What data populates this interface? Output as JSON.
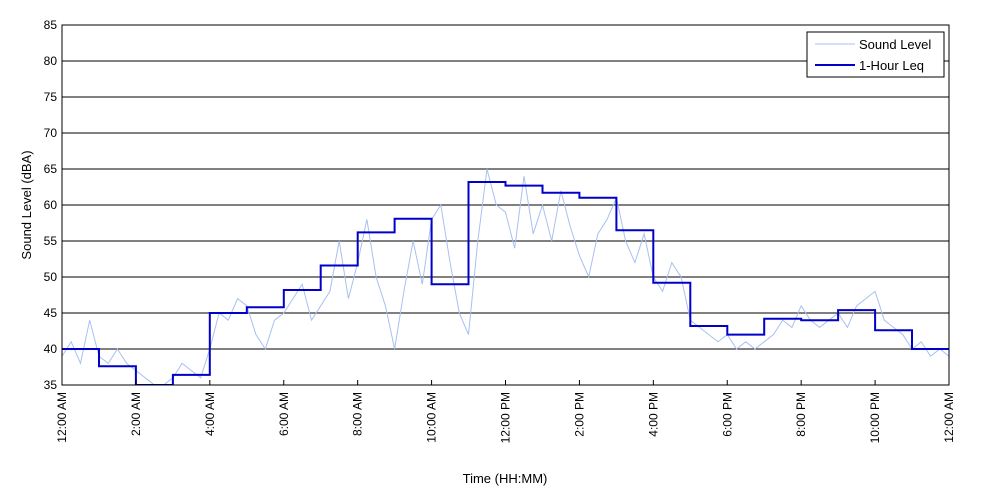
{
  "chart_data": {
    "type": "line",
    "xlabel": "Time (HH:MM)",
    "ylabel": "Sound Level (dBA)",
    "ylim": [
      35,
      85
    ],
    "yticks": [
      35,
      40,
      45,
      50,
      55,
      60,
      65,
      70,
      75,
      80,
      85
    ],
    "xlim": [
      0,
      24
    ],
    "xticks": [
      {
        "hour": 0,
        "label": "12:00 AM"
      },
      {
        "hour": 2,
        "label": "2:00 AM"
      },
      {
        "hour": 4,
        "label": "4:00 AM"
      },
      {
        "hour": 6,
        "label": "6:00 AM"
      },
      {
        "hour": 8,
        "label": "8:00 AM"
      },
      {
        "hour": 10,
        "label": "10:00 AM"
      },
      {
        "hour": 12,
        "label": "12:00 PM"
      },
      {
        "hour": 14,
        "label": "2:00 PM"
      },
      {
        "hour": 16,
        "label": "4:00 PM"
      },
      {
        "hour": 18,
        "label": "6:00 PM"
      },
      {
        "hour": 20,
        "label": "8:00 PM"
      },
      {
        "hour": 22,
        "label": "10:00 PM"
      },
      {
        "hour": 24,
        "label": "12:00 AM"
      }
    ],
    "grid": "horizontal",
    "legend_position": "top-right",
    "series": [
      {
        "name": "Sound Level",
        "color": "#a8c0f0",
        "x": [
          0,
          0.25,
          0.5,
          0.75,
          1,
          1.25,
          1.5,
          1.75,
          2,
          2.25,
          2.5,
          2.75,
          3,
          3.25,
          3.5,
          3.75,
          4,
          4.25,
          4.5,
          4.75,
          5,
          5.25,
          5.5,
          5.75,
          6,
          6.25,
          6.5,
          6.75,
          7,
          7.25,
          7.5,
          7.75,
          8,
          8.25,
          8.5,
          8.75,
          9,
          9.25,
          9.5,
          9.75,
          10,
          10.25,
          10.5,
          10.75,
          11,
          11.25,
          11.5,
          11.75,
          12,
          12.25,
          12.5,
          12.75,
          13,
          13.25,
          13.5,
          13.75,
          14,
          14.25,
          14.5,
          14.75,
          15,
          15.25,
          15.5,
          15.75,
          16,
          16.25,
          16.5,
          16.75,
          17,
          17.25,
          17.5,
          17.75,
          18,
          18.25,
          18.5,
          18.75,
          19,
          19.25,
          19.5,
          19.75,
          20,
          20.25,
          20.5,
          20.75,
          21,
          21.25,
          21.5,
          21.75,
          22,
          22.25,
          22.5,
          22.75,
          23,
          23.25,
          23.5,
          23.75,
          24
        ],
        "y": [
          39,
          41,
          38,
          44,
          39,
          38,
          40,
          38,
          37,
          36,
          35,
          35,
          36,
          38,
          37,
          36,
          40,
          45,
          44,
          47,
          46,
          42,
          40,
          44,
          45,
          47,
          49,
          44,
          46,
          48,
          55,
          47,
          52,
          58,
          50,
          46,
          40,
          48,
          55,
          49,
          58,
          60,
          52,
          45,
          42,
          55,
          65,
          60,
          59,
          54,
          64,
          56,
          60,
          55,
          62,
          57,
          53,
          50,
          56,
          58,
          61,
          55,
          52,
          56,
          50,
          48,
          52,
          50,
          44,
          43,
          42,
          41,
          42,
          40,
          41,
          40,
          41,
          42,
          44,
          43,
          46,
          44,
          43,
          44,
          45,
          43,
          46,
          47,
          48,
          44,
          43,
          42,
          40,
          41,
          39,
          40,
          39
        ]
      },
      {
        "name": "1-Hour Leq",
        "color": "#0000c8",
        "step": "post",
        "x": [
          0,
          1,
          2,
          3,
          4,
          5,
          6,
          7,
          8,
          9,
          10,
          11,
          12,
          13,
          14,
          15,
          16,
          17,
          18,
          19,
          20,
          21,
          22,
          23,
          24
        ],
        "y": [
          40,
          37.6,
          34.5,
          36.4,
          45,
          45.8,
          48.2,
          51.6,
          56.2,
          58.1,
          49,
          63.2,
          62.7,
          61.7,
          61,
          56.5,
          49.2,
          43.2,
          42,
          44.2,
          44,
          45.4,
          42.6,
          40,
          40
        ]
      }
    ]
  }
}
